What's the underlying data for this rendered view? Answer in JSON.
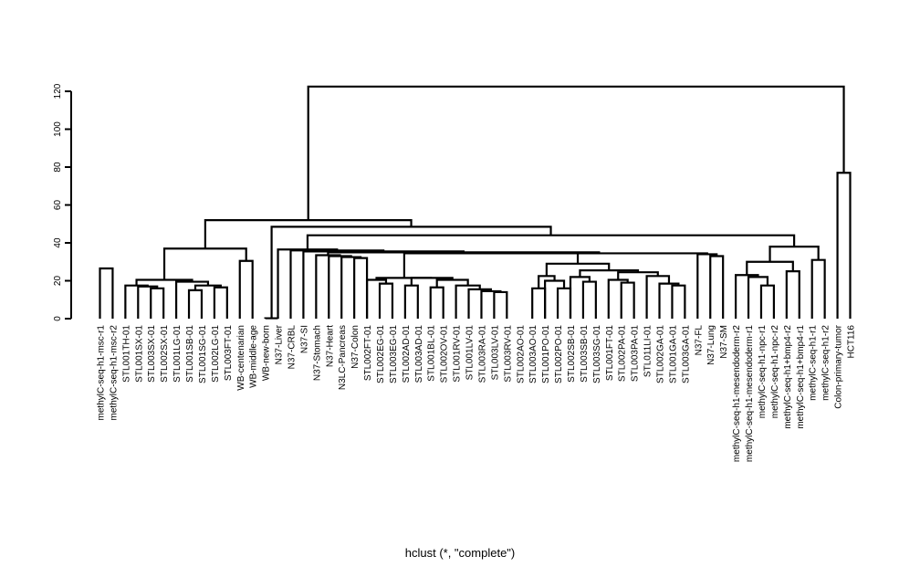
{
  "chart_data": {
    "type": "dendrogram",
    "title": "",
    "xlabel": "hclust (*, \"complete\")",
    "ylabel": "",
    "ylim": [
      0,
      125
    ],
    "yticks": [
      0,
      20,
      40,
      60,
      80,
      100,
      120
    ],
    "grid": false,
    "legend": "none",
    "leaves": [
      "methylC-seq-h1-msc-r1",
      "methylC-seq-h1-msc-r2",
      "STL001TH-01",
      "STL001SX-01",
      "STL003SX-01",
      "STL002SX-01",
      "STL001LG-01",
      "STL001SB-01",
      "STL001SG-01",
      "STL002LG-01",
      "STL003FT-01",
      "WB-centenarian",
      "WB-middle-age",
      "WB-new-born",
      "N37-Liver",
      "N37-CRBL",
      "N37-SI",
      "N37-Stomach",
      "N37-Heart",
      "N3LC-Pancreas",
      "N37-Colon",
      "STL002FT-01",
      "STL002EG-01",
      "STL003EG-01",
      "STL002AD-01",
      "STL003AD-01",
      "STL001BL-01",
      "STL002OV-01",
      "STL001RV-01",
      "STL001LV-01",
      "STL003RA-01",
      "STL003LV-01",
      "STL003RV-01",
      "STL002AO-01",
      "STL003AO-01",
      "STL001PO-01",
      "STL002PO-01",
      "STL002SB-01",
      "STL003SB-01",
      "STL003SG-01",
      "STL001FT-01",
      "STL002PA-01",
      "STL003PA-01",
      "STL011LI-01",
      "STL002GA-01",
      "STL001GA-01",
      "STL003GA-01",
      "N37-FL",
      "N37-Lung",
      "N37-SM",
      "methylC-seq-h1-mesendoderm-r2",
      "methylC-seq-h1-mesendoderm-r1",
      "methylC-seq-h1-npc-r1",
      "methylC-seq-h1-npc-r2",
      "methylC-seq-h1+bmp4-r2",
      "methylC-seq-h1+bmp4-r1",
      "methylC-seq-h1-r1",
      "methylC-seq-h1-r2",
      "Colon-primary-tumor",
      "HCT116"
    ],
    "merges": [
      [
        -1,
        -2,
        26.5
      ],
      [
        -5,
        -6,
        16
      ],
      [
        -4,
        2,
        17
      ],
      [
        -3,
        3,
        17.5
      ],
      [
        -8,
        -9,
        15
      ],
      [
        -10,
        -11,
        16.5
      ],
      [
        5,
        6,
        17.5
      ],
      [
        -7,
        7,
        19.5
      ],
      [
        4,
        8,
        20.5
      ],
      [
        -12,
        -13,
        30.5
      ],
      [
        9,
        10,
        37
      ],
      [
        -14,
        -15,
        0.2
      ],
      [
        -21,
        -22,
        32
      ],
      [
        -20,
        13,
        32.5
      ],
      [
        -19,
        14,
        33
      ],
      [
        -18,
        15,
        33.5
      ],
      [
        -23,
        -24,
        18.5
      ],
      [
        -22,
        17,
        20.5
      ],
      [
        -25,
        -26,
        17.5
      ],
      [
        -27,
        -28,
        16.5
      ],
      [
        -32,
        -33,
        14
      ],
      [
        -31,
        21,
        14.5
      ],
      [
        -30,
        22,
        15.5
      ],
      [
        -29,
        23,
        17.5
      ],
      [
        20,
        24,
        20.5
      ],
      [
        19,
        25,
        21.5
      ],
      [
        18,
        26,
        21.5
      ],
      [
        -35,
        -36,
        16
      ],
      [
        -37,
        -38,
        16
      ],
      [
        -36,
        29,
        20
      ],
      [
        28,
        30,
        22.5
      ],
      [
        -39,
        -40,
        19.5
      ],
      [
        -38,
        32,
        22
      ],
      [
        -42,
        -43,
        19
      ],
      [
        -41,
        34,
        20.5
      ],
      [
        -46,
        -47,
        17.5
      ],
      [
        -45,
        36,
        18.5
      ],
      [
        -44,
        37,
        22.5
      ],
      [
        35,
        38,
        24.5
      ],
      [
        33,
        39,
        25.5
      ],
      [
        31,
        40,
        29
      ],
      [
        27,
        41,
        34.5
      ],
      [
        -49,
        -50,
        33
      ],
      [
        -48,
        43,
        34
      ],
      [
        42,
        44,
        34.5
      ],
      [
        16,
        45,
        35
      ],
      [
        -17,
        46,
        35.5
      ],
      [
        -16,
        47,
        36
      ],
      [
        -15,
        48,
        36.5
      ],
      [
        -53,
        -54,
        17.5
      ],
      [
        -52,
        50,
        22
      ],
      [
        -51,
        51,
        23
      ],
      [
        -55,
        -56,
        25
      ],
      [
        52,
        53,
        30
      ],
      [
        -57,
        -58,
        31
      ],
      [
        54,
        55,
        38
      ],
      [
        49,
        56,
        44
      ],
      [
        12,
        57,
        48.5
      ],
      [
        11,
        58,
        52
      ],
      [
        -59,
        -60,
        77
      ],
      [
        59,
        60,
        122.5
      ]
    ]
  }
}
